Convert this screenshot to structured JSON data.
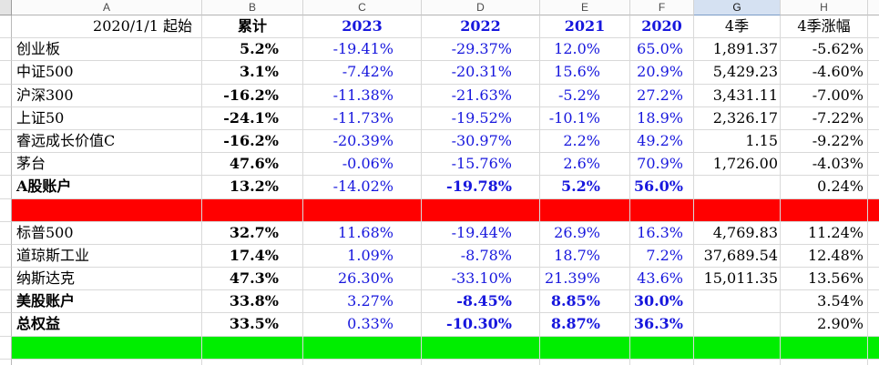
{
  "colors": {
    "band_negative": "#ff0000",
    "band_positive": "#00ee00",
    "value_text_blue": "#1717dd",
    "selected_header_bg": "#d5e1f2"
  },
  "sheet": {
    "column_letters": [
      "A",
      "B",
      "C",
      "D",
      "E",
      "F",
      "G",
      "H"
    ],
    "selected_column": "G",
    "header_row": {
      "a": "2020/1/1 起始",
      "b": "累计",
      "c": "2023",
      "d": "2022",
      "e": "2021",
      "f": "2020",
      "g": "4季",
      "h": "4季涨幅"
    },
    "rows": [
      {
        "type": "data",
        "label": "创业板",
        "b": "5.2%",
        "c": "-19.41%",
        "d": "-29.37%",
        "e": "12.0%",
        "f": "65.0%",
        "g": "1,891.37",
        "h": "-5.62%"
      },
      {
        "type": "data",
        "label": "中证500",
        "b": "3.1%",
        "c": "-7.42%",
        "d": "-20.31%",
        "e": "15.6%",
        "f": "20.9%",
        "g": "5,429.23",
        "h": "-4.60%"
      },
      {
        "type": "data",
        "label": "沪深300",
        "b": "-16.2%",
        "c": "-11.38%",
        "d": "-21.63%",
        "e": "-5.2%",
        "f": "27.2%",
        "g": "3,431.11",
        "h": "-7.00%"
      },
      {
        "type": "data",
        "label": "上证50",
        "b": "-24.1%",
        "c": "-11.73%",
        "d": "-19.52%",
        "e": "-10.1%",
        "f": "18.9%",
        "g": "2,326.17",
        "h": "-7.22%"
      },
      {
        "type": "data",
        "label": "睿远成长价值C",
        "b": "-16.2%",
        "c": "-20.39%",
        "d": "-30.97%",
        "e": "2.2%",
        "f": "49.2%",
        "g": "1.15",
        "h": "-9.22%"
      },
      {
        "type": "data",
        "label": "茅台",
        "b": "47.6%",
        "c": "-0.06%",
        "d": "-15.76%",
        "e": "2.6%",
        "f": "70.9%",
        "g": "1,726.00",
        "h": "-4.03%"
      },
      {
        "type": "data",
        "label": "A股账户",
        "bold_label": true,
        "bold_cells": [
          "d",
          "e",
          "f"
        ],
        "b": "13.2%",
        "c": "-14.02%",
        "d": "-19.78%",
        "e": "5.2%",
        "f": "56.0%",
        "g": "",
        "h": "0.24%"
      },
      {
        "type": "red"
      },
      {
        "type": "data",
        "label": "标普500",
        "b": "32.7%",
        "c": "11.68%",
        "d": "-19.44%",
        "e": "26.9%",
        "f": "16.3%",
        "g": "4,769.83",
        "h": "11.24%"
      },
      {
        "type": "data",
        "label": "道琼斯工业",
        "b": "17.4%",
        "c": "1.09%",
        "d": "-8.78%",
        "e": "18.7%",
        "f": "7.2%",
        "g": "37,689.54",
        "h": "12.48%"
      },
      {
        "type": "data",
        "label": "纳斯达克",
        "b": "47.3%",
        "c": "26.30%",
        "d": "-33.10%",
        "e": "21.39%",
        "f": "43.6%",
        "g": "15,011.35",
        "h": "13.56%"
      },
      {
        "type": "data",
        "label": "美股账户",
        "bold_label": true,
        "bold_cells": [
          "d",
          "e",
          "f"
        ],
        "b": "33.8%",
        "c": "3.27%",
        "d": "-8.45%",
        "e": "8.85%",
        "f": "30.0%",
        "g": "",
        "h": "3.54%"
      },
      {
        "type": "data",
        "label": "总权益",
        "bold_label": true,
        "bold_cells": [
          "d",
          "e",
          "f"
        ],
        "b": "33.5%",
        "c": "0.33%",
        "d": "-10.30%",
        "e": "8.87%",
        "f": "36.3%",
        "g": "",
        "h": "2.90%"
      },
      {
        "type": "green"
      },
      {
        "type": "partial"
      }
    ]
  }
}
